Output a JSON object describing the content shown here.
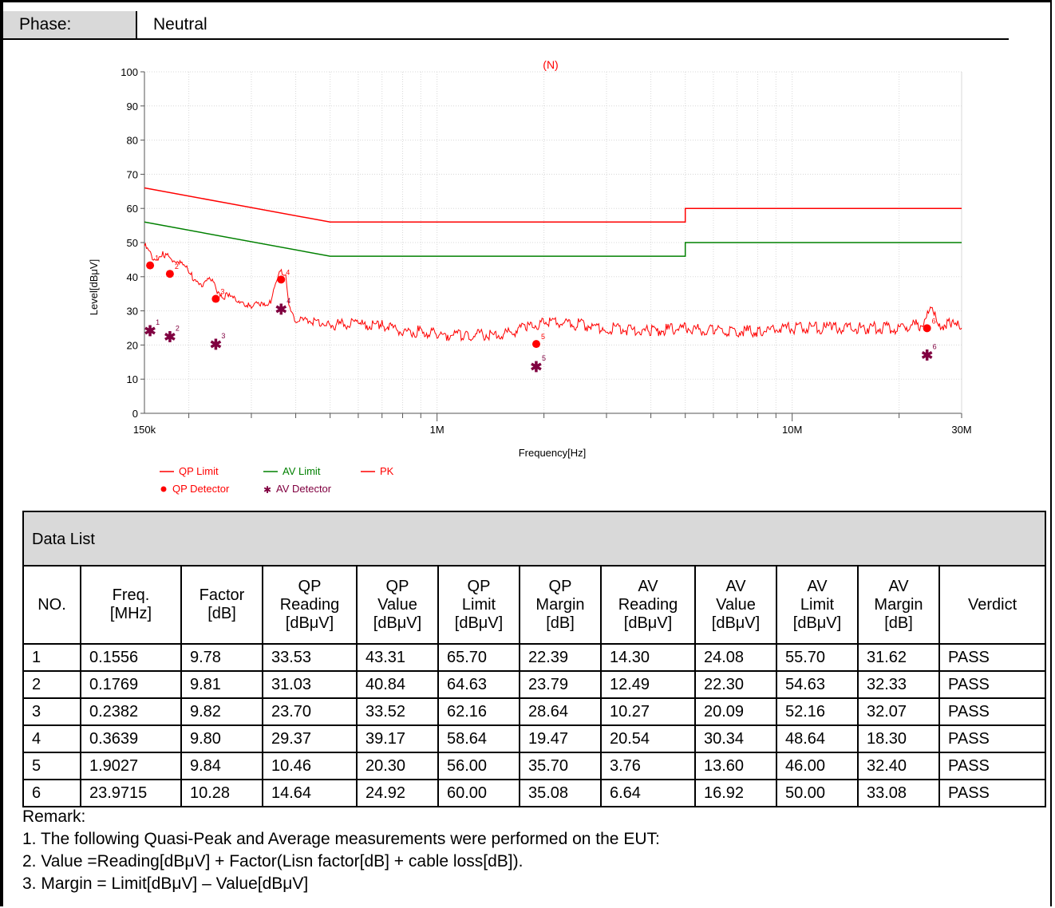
{
  "phase": {
    "label": "Phase:",
    "value": "Neutral"
  },
  "chart_data": {
    "type": "line",
    "title": "(N)",
    "xlabel": "Frequency[Hz]",
    "ylabel": "Level[dBμV]",
    "xscale": "log",
    "xlim": [
      150000,
      30000000
    ],
    "ylim": [
      0,
      100
    ],
    "x_tick_labels": [
      "150k",
      "1M",
      "10M",
      "30M"
    ],
    "y_ticks": [
      0,
      10,
      20,
      30,
      40,
      50,
      60,
      70,
      80,
      90,
      100
    ],
    "grid": true,
    "legend": {
      "placement": "bottom-left",
      "entries": [
        "QP Limit",
        "AV Limit",
        "PK",
        "QP Detector",
        "AV Detector"
      ]
    },
    "colors": {
      "qp_limit": "#ff0000",
      "av_limit": "#008000",
      "pk": "#ff0000",
      "qp_detector": "#ff0000",
      "av_detector": "#800040"
    },
    "series": [
      {
        "name": "QP Limit",
        "x": [
          150000,
          500000,
          5000000,
          5000000,
          30000000
        ],
        "y": [
          66,
          56,
          56,
          60,
          60
        ]
      },
      {
        "name": "AV Limit",
        "x": [
          150000,
          500000,
          5000000,
          5000000,
          30000000
        ],
        "y": [
          56,
          46,
          46,
          50,
          50
        ]
      },
      {
        "name": "PK",
        "x": [
          150000,
          160000,
          170000,
          180000,
          190000,
          200000,
          215000,
          230000,
          245000,
          260000,
          280000,
          300000,
          320000,
          340000,
          360000,
          375000,
          385000,
          400000,
          450000,
          500000,
          600000,
          700000,
          800000,
          900000,
          1000000,
          1200000,
          1500000,
          1800000,
          2000000,
          2500000,
          3000000,
          4000000,
          5000000,
          6000000,
          8000000,
          10000000,
          13000000,
          16000000,
          20000000,
          23000000,
          24500000,
          26000000,
          28000000,
          30000000
        ],
        "y": [
          49,
          45,
          47,
          44,
          45,
          41,
          38,
          39,
          35,
          34,
          33,
          31,
          32,
          33,
          41,
          41,
          30,
          27,
          27,
          26,
          26,
          26,
          24,
          24,
          23,
          23,
          23,
          25,
          27,
          26,
          25,
          24,
          25,
          24,
          24,
          25,
          25,
          25,
          25,
          26,
          30,
          26,
          26,
          25
        ]
      },
      {
        "name": "QP Detector",
        "x": [
          155600,
          176900,
          238200,
          363900,
          1902700,
          23971500
        ],
        "y": [
          43.31,
          40.84,
          33.52,
          39.17,
          20.3,
          24.92
        ],
        "labels": [
          "1",
          "2",
          "3",
          "4",
          "5",
          "6"
        ]
      },
      {
        "name": "AV Detector",
        "x": [
          155600,
          176900,
          238200,
          363900,
          1902700,
          23971500
        ],
        "y": [
          24.08,
          22.3,
          20.09,
          30.34,
          13.6,
          16.92
        ],
        "labels": [
          "1",
          "2",
          "3",
          "4",
          "5",
          "6"
        ]
      }
    ]
  },
  "data_list": {
    "title": "Data List",
    "headers": [
      "NO.",
      "Freq.\n[MHz]",
      "Factor\n[dB]",
      "QP\nReading\n[dBμV]",
      "QP\nValue\n[dBμV]",
      "QP\nLimit\n[dBμV]",
      "QP\nMargin\n[dB]",
      "AV\nReading\n[dBμV]",
      "AV\nValue\n[dBμV]",
      "AV\nLimit\n[dBμV]",
      "AV\nMargin\n[dB]",
      "Verdict"
    ],
    "rows": [
      [
        "1",
        "0.1556",
        "9.78",
        "33.53",
        "43.31",
        "65.70",
        "22.39",
        "14.30",
        "24.08",
        "55.70",
        "31.62",
        "PASS"
      ],
      [
        "2",
        "0.1769",
        "9.81",
        "31.03",
        "40.84",
        "64.63",
        "23.79",
        "12.49",
        "22.30",
        "54.63",
        "32.33",
        "PASS"
      ],
      [
        "3",
        "0.2382",
        "9.82",
        "23.70",
        "33.52",
        "62.16",
        "28.64",
        "10.27",
        "20.09",
        "52.16",
        "32.07",
        "PASS"
      ],
      [
        "4",
        "0.3639",
        "9.80",
        "29.37",
        "39.17",
        "58.64",
        "19.47",
        "20.54",
        "30.34",
        "48.64",
        "18.30",
        "PASS"
      ],
      [
        "5",
        "1.9027",
        "9.84",
        "10.46",
        "20.30",
        "56.00",
        "35.70",
        "3.76",
        "13.60",
        "46.00",
        "32.40",
        "PASS"
      ],
      [
        "6",
        "23.9715",
        "10.28",
        "14.64",
        "24.92",
        "60.00",
        "35.08",
        "6.64",
        "16.92",
        "50.00",
        "33.08",
        "PASS"
      ]
    ]
  },
  "remarks": {
    "title": "Remark:",
    "lines": [
      "1. The following Quasi-Peak and Average measurements were performed on the EUT:",
      "2. Value =Reading[dBμV] + Factor(Lisn factor[dB] + cable loss[dB]).",
      "3. Margin = Limit[dBμV] – Value[dBμV]"
    ]
  }
}
